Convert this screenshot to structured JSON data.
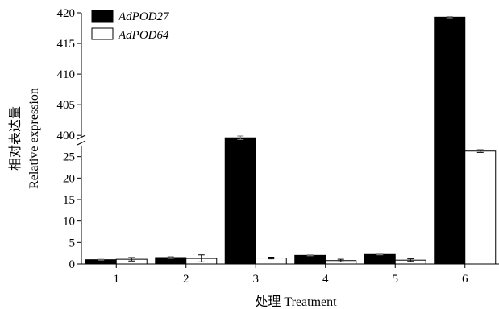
{
  "chart_data": {
    "type": "bar",
    "xlabel": "处理 Treatment",
    "ylabel_cn": "相对表达量",
    "ylabel_en": "Relative expression",
    "categories": [
      "1",
      "2",
      "3",
      "4",
      "5",
      "6"
    ],
    "series": [
      {
        "name": "AdPOD27",
        "fill": "#000000",
        "values": [
          1.0,
          1.5,
          399.6,
          2.0,
          2.2,
          419.3
        ],
        "errors": [
          0.1,
          0.2,
          0.3,
          0.1,
          0.1,
          0.1
        ]
      },
      {
        "name": "AdPOD64",
        "fill": "#ffffff",
        "values": [
          1.1,
          1.3,
          1.4,
          0.8,
          0.9,
          26.3
        ],
        "errors": [
          0.4,
          0.8,
          0.2,
          0.3,
          0.3,
          0.3
        ]
      }
    ],
    "y_axis_lower": {
      "range": [
        0,
        30
      ],
      "ticks": [
        "0",
        "5",
        "10",
        "15",
        "20",
        "25"
      ]
    },
    "y_axis_upper": {
      "range": [
        399.5,
        420
      ],
      "ticks": [
        "400",
        "405",
        "410",
        "415",
        "420"
      ]
    },
    "axis_break": true,
    "grid": false,
    "legend_position": "top-left"
  }
}
